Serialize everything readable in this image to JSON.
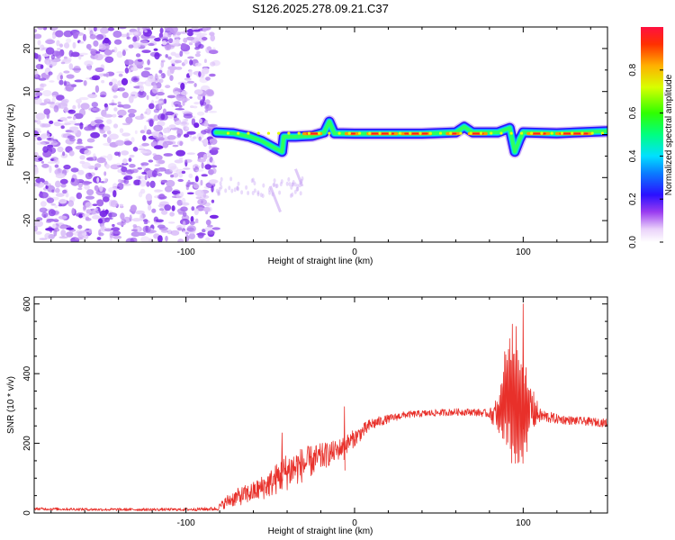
{
  "title": "S126.2025.278.09.21.C37",
  "chart_data": [
    {
      "type": "heatmap",
      "name": "spectrogram",
      "xlabel": "Height of straight line (km)",
      "ylabel": "Frequency (Hz)",
      "xlim": [
        -190,
        150
      ],
      "ylim": [
        -25,
        25
      ],
      "xticks": [
        -100,
        0,
        100
      ],
      "yticks": [
        -20,
        -10,
        0,
        10,
        20
      ],
      "noise_region_x": [
        -190,
        -82
      ],
      "signal_track": [
        [
          -82,
          0.5
        ],
        [
          -72,
          0.3
        ],
        [
          -62,
          -0.5
        ],
        [
          -55,
          -1.5
        ],
        [
          -48,
          -3
        ],
        [
          -43,
          -4
        ],
        [
          -42,
          -0.5
        ],
        [
          -35,
          -0.5
        ],
        [
          -25,
          -0.3
        ],
        [
          -18,
          0.5
        ],
        [
          -15,
          3
        ],
        [
          -12,
          0.3
        ],
        [
          0,
          0.2
        ],
        [
          20,
          0.2
        ],
        [
          40,
          0.2
        ],
        [
          60,
          0.5
        ],
        [
          65,
          1.8
        ],
        [
          70,
          0.5
        ],
        [
          85,
          0.5
        ],
        [
          92,
          1.5
        ],
        [
          95,
          -4
        ],
        [
          98,
          -1
        ],
        [
          100,
          0.5
        ],
        [
          120,
          0.3
        ],
        [
          150,
          0.8
        ]
      ],
      "colorbar": {
        "label": "Normalized spectral amplitude",
        "range": [
          0,
          1
        ],
        "ticks": [
          0.0,
          0.2,
          0.4,
          0.6,
          0.8
        ]
      }
    },
    {
      "type": "line",
      "name": "snr",
      "xlabel": "Height of straight line (km)",
      "ylabel": "SNR (10 * v/v)",
      "xlim": [
        -190,
        150
      ],
      "ylim": [
        0,
        620
      ],
      "xticks": [
        -100,
        0,
        100
      ],
      "yticks": [
        0,
        200,
        400,
        600
      ],
      "color": "#e8302a",
      "series": [
        {
          "name": "SNR",
          "x": [
            -190,
            -150,
            -100,
            -82,
            -75,
            -70,
            -60,
            -50,
            -40,
            -30,
            -20,
            -10,
            0,
            10,
            20,
            30,
            40,
            50,
            60,
            70,
            80,
            85,
            88,
            92,
            96,
            100,
            104,
            110,
            120,
            130,
            140,
            150
          ],
          "y": [
            12,
            10,
            10,
            12,
            35,
            45,
            60,
            85,
            120,
            140,
            160,
            180,
            215,
            255,
            270,
            282,
            285,
            288,
            290,
            290,
            285,
            280,
            320,
            350,
            310,
            280,
            300,
            280,
            270,
            265,
            262,
            258
          ],
          "noise_amplitude": [
            4,
            4,
            4,
            6,
            20,
            25,
            30,
            40,
            55,
            50,
            40,
            30,
            25,
            18,
            12,
            10,
            10,
            10,
            10,
            10,
            12,
            60,
            150,
            220,
            250,
            200,
            80,
            20,
            14,
            12,
            12,
            12
          ]
        }
      ],
      "annotations": [
        {
          "x": -43,
          "y": 230
        },
        {
          "x": -6,
          "y": 305
        },
        {
          "x": 100,
          "y": 600
        }
      ]
    }
  ]
}
